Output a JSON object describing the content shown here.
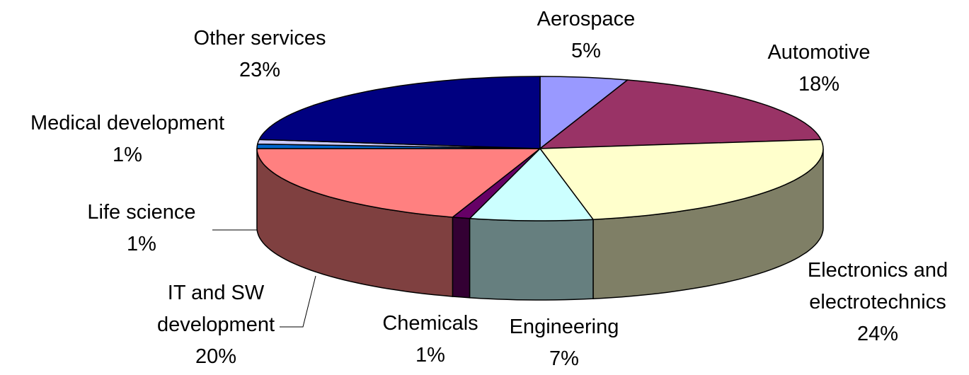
{
  "chart_data": {
    "type": "pie3d",
    "categories": [
      "Aerospace",
      "Automotive",
      "Electronics and electrotechnics",
      "Engineering",
      "Chemicals",
      "IT and SW development",
      "Life science",
      "Medical development",
      "Other services"
    ],
    "values": [
      5,
      18,
      24,
      7,
      1,
      20,
      1,
      1,
      23
    ],
    "value_labels": [
      "5%",
      "18%",
      "24%",
      "7%",
      "1%",
      "20%",
      "1%",
      "1%",
      "23%"
    ],
    "colors": [
      "#9999ff",
      "#993366",
      "#ffffcc",
      "#ccffff",
      "#660066",
      "#ff8080",
      "#0066cc",
      "#ccccff",
      "#000080"
    ]
  }
}
